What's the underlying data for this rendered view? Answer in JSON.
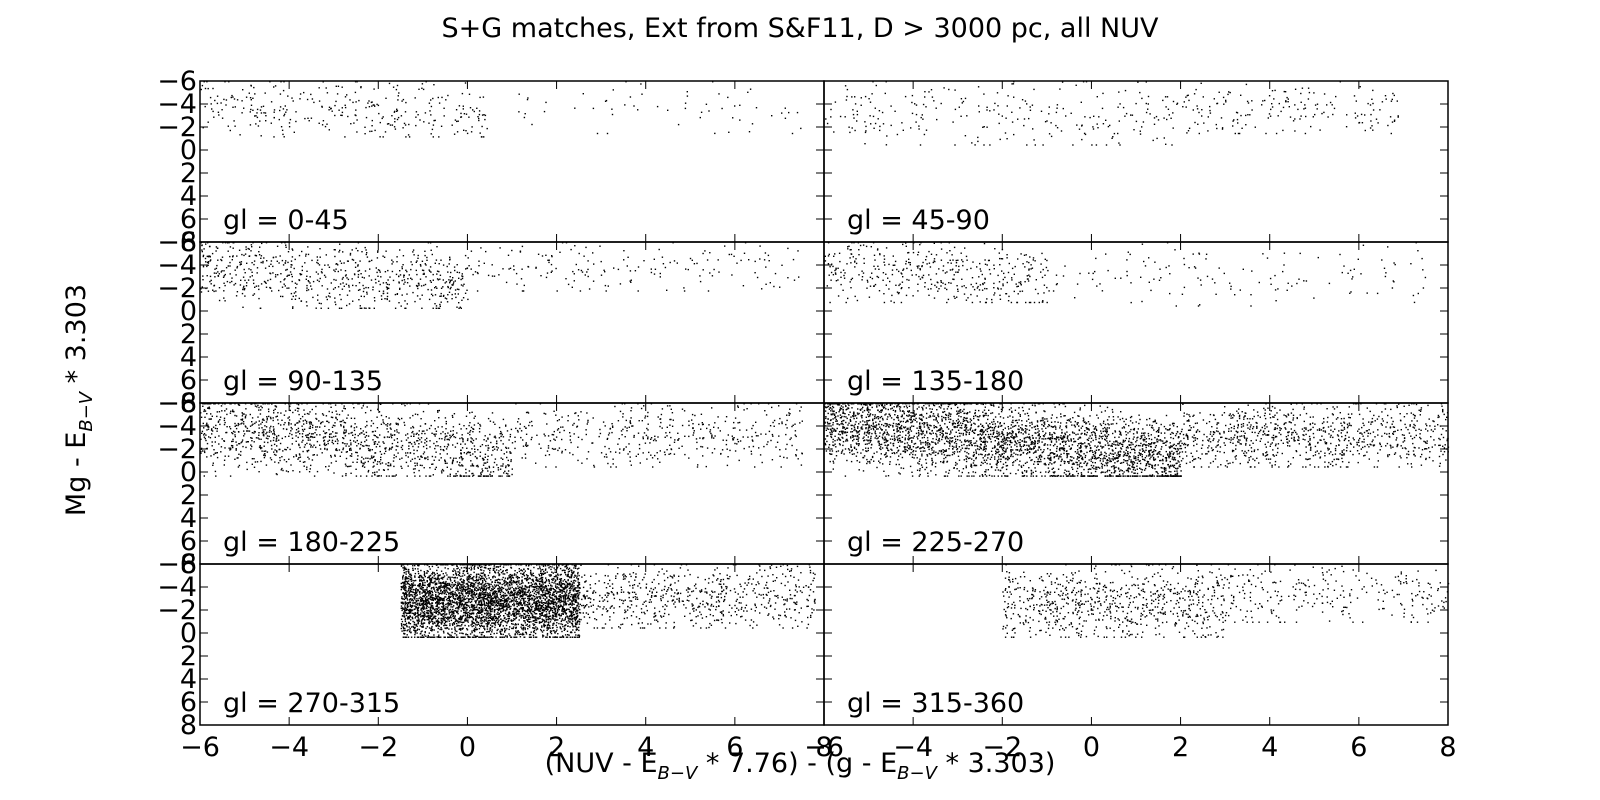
{
  "chart_data": {
    "type": "scatter",
    "title": "S+G matches, Ext from S&F11, D > 3000 pc, all NUV",
    "xlabel": {
      "pre": "(NUV - E",
      "sub1": "B−V",
      "mid": " * 7.76) - (g - E",
      "sub2": "B−V",
      "post": " * 3.303)"
    },
    "ylabel": {
      "pre": "Mg - E",
      "sub": "B−V",
      "post": " * 3.303"
    },
    "xlim": [
      -6,
      8
    ],
    "ylim_inverted": [
      8,
      -6
    ],
    "xticks": [
      -6,
      -4,
      -2,
      0,
      2,
      4,
      6,
      8
    ],
    "xtick_labels": [
      "−6",
      "−4",
      "−2",
      "0",
      "2",
      "4",
      "6",
      "8"
    ],
    "yticks": [
      -6,
      -4,
      -2,
      0,
      2,
      4,
      6,
      8
    ],
    "ytick_labels": [
      "−6",
      "−4",
      "−2",
      "0",
      "2",
      "4",
      "6",
      "8"
    ],
    "grid": false,
    "layout": "4 rows x 2 columns, shared axes",
    "marker_color": "#000000",
    "panels": [
      {
        "label": "gl = 0-45",
        "clusters": [
          {
            "n": 320,
            "x": [
              -6,
              0.5
            ],
            "y": [
              -5.8,
              -1.2
            ],
            "trend": 0.25
          },
          {
            "n": 60,
            "x": [
              0.5,
              7.5
            ],
            "y": [
              -5.8,
              -1.5
            ],
            "trend": 0
          }
        ]
      },
      {
        "label": "gl = 45-90",
        "clusters": [
          {
            "n": 260,
            "x": [
              -6,
              2
            ],
            "y": [
              -5.8,
              -0.5
            ],
            "trend": 0.15
          },
          {
            "n": 180,
            "x": [
              2,
              7
            ],
            "y": [
              -5.8,
              -1.5
            ],
            "trend": 0
          }
        ]
      },
      {
        "label": "gl = 90-135",
        "clusters": [
          {
            "n": 700,
            "x": [
              -6,
              0
            ],
            "y": [
              -5.8,
              -0.3
            ],
            "trend": 0.3
          },
          {
            "n": 180,
            "x": [
              0,
              7.5
            ],
            "y": [
              -5.8,
              -1.8
            ],
            "trend": 0
          }
        ]
      },
      {
        "label": "gl = 135-180",
        "clusters": [
          {
            "n": 420,
            "x": [
              -6,
              -1
            ],
            "y": [
              -5.8,
              -0.8
            ],
            "trend": 0.3
          },
          {
            "n": 140,
            "x": [
              -1,
              7.5
            ],
            "y": [
              -5.8,
              -0.5
            ],
            "trend": 0
          }
        ]
      },
      {
        "label": "gl = 180-225",
        "clusters": [
          {
            "n": 1400,
            "x": [
              -6,
              1
            ],
            "y": [
              -5.8,
              0.3
            ],
            "trend": 0.45
          },
          {
            "n": 450,
            "x": [
              1,
              7.5
            ],
            "y": [
              -5.8,
              -0.5
            ],
            "trend": 0
          }
        ]
      },
      {
        "label": "gl = 225-270",
        "clusters": [
          {
            "n": 3200,
            "x": [
              -6,
              2
            ],
            "y": [
              -5.8,
              0.3
            ],
            "trend": 0.55
          },
          {
            "n": 900,
            "x": [
              2,
              8
            ],
            "y": [
              -5.8,
              -0.5
            ],
            "trend": 0
          }
        ]
      },
      {
        "label": "gl = 270-315",
        "clusters": [
          {
            "n": 4200,
            "x": [
              -1.5,
              2.5
            ],
            "y": [
              -5.8,
              0.3
            ],
            "trend": 0
          },
          {
            "n": 650,
            "x": [
              2.5,
              7.8
            ],
            "y": [
              -5.8,
              -0.5
            ],
            "trend": 0
          }
        ]
      },
      {
        "label": "gl = 315-360",
        "clusters": [
          {
            "n": 750,
            "x": [
              -2,
              3
            ],
            "y": [
              -5.5,
              0.3
            ],
            "trend": 0
          },
          {
            "n": 260,
            "x": [
              3,
              8
            ],
            "y": [
              -5.8,
              -1
            ],
            "trend": 0
          }
        ]
      }
    ]
  }
}
